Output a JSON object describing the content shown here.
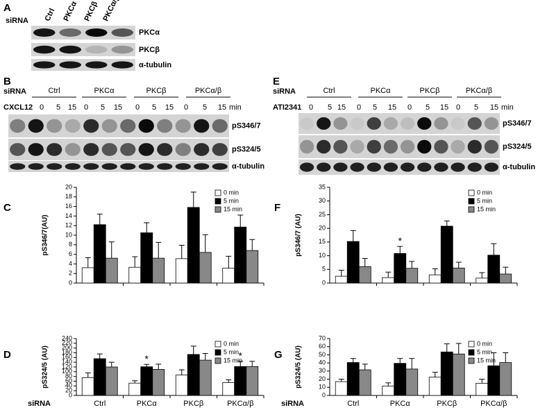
{
  "panels": {
    "A": {
      "label": "A",
      "rowlabel": "siRNA",
      "lanes": [
        "Ctrl",
        "PKCα",
        "PKCβ",
        "PKCα/β"
      ],
      "bands": [
        "PKCα",
        "PKCβ",
        "α-tubulin"
      ]
    },
    "B": {
      "label": "B",
      "rowlabel": "siRNA",
      "groups": [
        "Ctrl",
        "PKCα",
        "PKCβ",
        "PKCα/β"
      ],
      "treatment": "CXCL12",
      "times": [
        "0",
        "5",
        "15"
      ],
      "unit": "min",
      "bands": [
        "pS346/7",
        "pS324/5",
        "α-tubulin"
      ]
    },
    "E": {
      "label": "E",
      "rowlabel": "siRNA",
      "groups": [
        "Ctrl",
        "PKCα",
        "PKCβ",
        "PKCα/β"
      ],
      "treatment": "ATI2341",
      "times": [
        "0",
        "5",
        "15"
      ],
      "unit": "min",
      "bands": [
        "pS346/7",
        "pS324/5",
        "α-tubulin"
      ]
    }
  },
  "chart_data": [
    {
      "type": "bar",
      "panel": "C",
      "ylabel": "pS346/7(AU)",
      "categories": [
        null,
        null,
        null,
        null
      ],
      "series": [
        {
          "name": "0 min",
          "color": "#ffffff",
          "values": [
            3.2,
            3.3,
            5.1,
            3.1
          ],
          "errors": [
            2.1,
            2.2,
            2.8,
            2.5
          ]
        },
        {
          "name": "5 min",
          "color": "#000000",
          "values": [
            12.2,
            10.5,
            15.8,
            11.7
          ],
          "errors": [
            2.2,
            2.1,
            3.2,
            2.5
          ]
        },
        {
          "name": "15 min",
          "color": "#888888",
          "values": [
            5.2,
            5.2,
            6.4,
            6.8
          ],
          "errors": [
            3.4,
            3.3,
            3.7,
            2.3
          ]
        }
      ],
      "ylim": [
        0,
        20
      ],
      "yticks": [
        0,
        2,
        4,
        6,
        8,
        10,
        12,
        14,
        16,
        18,
        20
      ]
    },
    {
      "type": "bar",
      "panel": "D",
      "ylabel": "pS324/5 (AU)",
      "xlabel": "siRNA",
      "categories": [
        "Ctrl",
        "PKCα",
        "PKCβ",
        "PKCα/β"
      ],
      "series": [
        {
          "name": "0 min",
          "color": "#ffffff",
          "values": [
            75,
            52,
            86,
            54
          ],
          "errors": [
            20,
            10,
            22,
            12
          ]
        },
        {
          "name": "5 min",
          "color": "#000000",
          "values": [
            155,
            121,
            173,
            122
          ],
          "errors": [
            20,
            10,
            35,
            22
          ]
        },
        {
          "name": "15 min",
          "color": "#888888",
          "values": [
            120,
            110,
            149,
            122
          ],
          "errors": [
            20,
            22,
            28,
            22
          ]
        }
      ],
      "ylim": [
        0,
        240
      ],
      "yticks": [
        0,
        20,
        40,
        60,
        80,
        100,
        120,
        140,
        160,
        180,
        200,
        220,
        240
      ],
      "annotations": [
        {
          "text": "*",
          "category": "PKCα",
          "series": "5 min"
        },
        {
          "text": "*",
          "category": "PKCα/β",
          "series": "5 min"
        }
      ]
    },
    {
      "type": "bar",
      "panel": "F",
      "ylabel": "pS346/7 (AU)",
      "categories": [
        null,
        null,
        null,
        null
      ],
      "series": [
        {
          "name": "0 min",
          "color": "#ffffff",
          "values": [
            2.5,
            2.0,
            3.0,
            1.8
          ],
          "errors": [
            2.2,
            2.0,
            2.2,
            2.0
          ]
        },
        {
          "name": "5 min",
          "color": "#000000",
          "values": [
            15.2,
            10.8,
            20.8,
            10.2
          ],
          "errors": [
            4.0,
            2.6,
            1.9,
            4.2
          ]
        },
        {
          "name": "15 min",
          "color": "#888888",
          "values": [
            6.0,
            5.4,
            5.5,
            3.3
          ],
          "errors": [
            3.0,
            2.5,
            2.1,
            2.5
          ]
        }
      ],
      "ylim": [
        0,
        35
      ],
      "yticks": [
        0,
        5,
        10,
        15,
        20,
        25,
        30,
        35
      ],
      "annotations": [
        {
          "text": "*",
          "category": null,
          "series": "5 min",
          "index": 1
        }
      ]
    },
    {
      "type": "bar",
      "panel": "G",
      "ylabel": "pS324/5 (AU)",
      "xlabel": "siRNA",
      "categories": [
        "Ctrl",
        "PKCα",
        "PKCβ",
        "PKCα/β"
      ],
      "series": [
        {
          "name": "0 min",
          "color": "#ffffff",
          "values": [
            17,
            11.5,
            22.5,
            15
          ],
          "errors": [
            3,
            4,
            6,
            5
          ]
        },
        {
          "name": "5 min",
          "color": "#000000",
          "values": [
            40.5,
            39.5,
            53.5,
            36.5
          ],
          "errors": [
            5,
            6,
            10,
            16
          ]
        },
        {
          "name": "15 min",
          "color": "#888888",
          "values": [
            31.5,
            32.5,
            51,
            40.5
          ],
          "errors": [
            7,
            13,
            13,
            12
          ]
        }
      ],
      "ylim": [
        0,
        70
      ],
      "yticks": [
        0,
        10,
        20,
        30,
        40,
        50,
        60,
        70
      ]
    }
  ]
}
